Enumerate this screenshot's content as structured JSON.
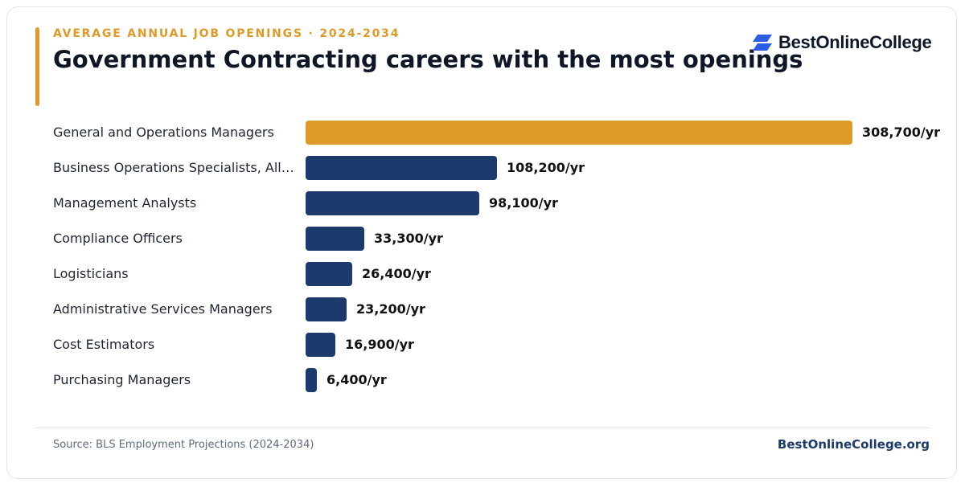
{
  "header": {
    "eyebrow": "AVERAGE ANNUAL JOB OPENINGS · 2024-2034",
    "title": "Government Contracting careers with the most openings"
  },
  "brand": {
    "logo_icon": "stacked-parallelograms-icon",
    "logo_text": "BestOnlineCollege",
    "site": "BestOnlineCollege.org"
  },
  "footer": {
    "source": "Source: BLS Employment Projections (2024-2034)"
  },
  "colors": {
    "accent": "#dc9b27",
    "navy": "#1c3a6b",
    "title": "#0f1626",
    "logo_blue": "#2b5ce6"
  },
  "chart_data": {
    "type": "bar",
    "orientation": "horizontal",
    "title": "Government Contracting careers with the most openings",
    "subtitle": "AVERAGE ANNUAL JOB OPENINGS · 2024-2034",
    "xlabel": "",
    "ylabel": "",
    "xlim": [
      0,
      308700
    ],
    "grid": false,
    "legend": "none",
    "categories": [
      "General and Operations Managers",
      "Business Operations Specialists, All O…",
      "Management Analysts",
      "Compliance Officers",
      "Logisticians",
      "Administrative Services Managers",
      "Cost Estimators",
      "Purchasing Managers"
    ],
    "values": [
      308700,
      108200,
      98100,
      33300,
      26400,
      23200,
      16900,
      6400
    ],
    "value_labels": [
      "308,700/yr",
      "108,200/yr",
      "98,100/yr",
      "33,300/yr",
      "26,400/yr",
      "23,200/yr",
      "16,900/yr",
      "6,400/yr"
    ],
    "highlight_index": 0
  }
}
